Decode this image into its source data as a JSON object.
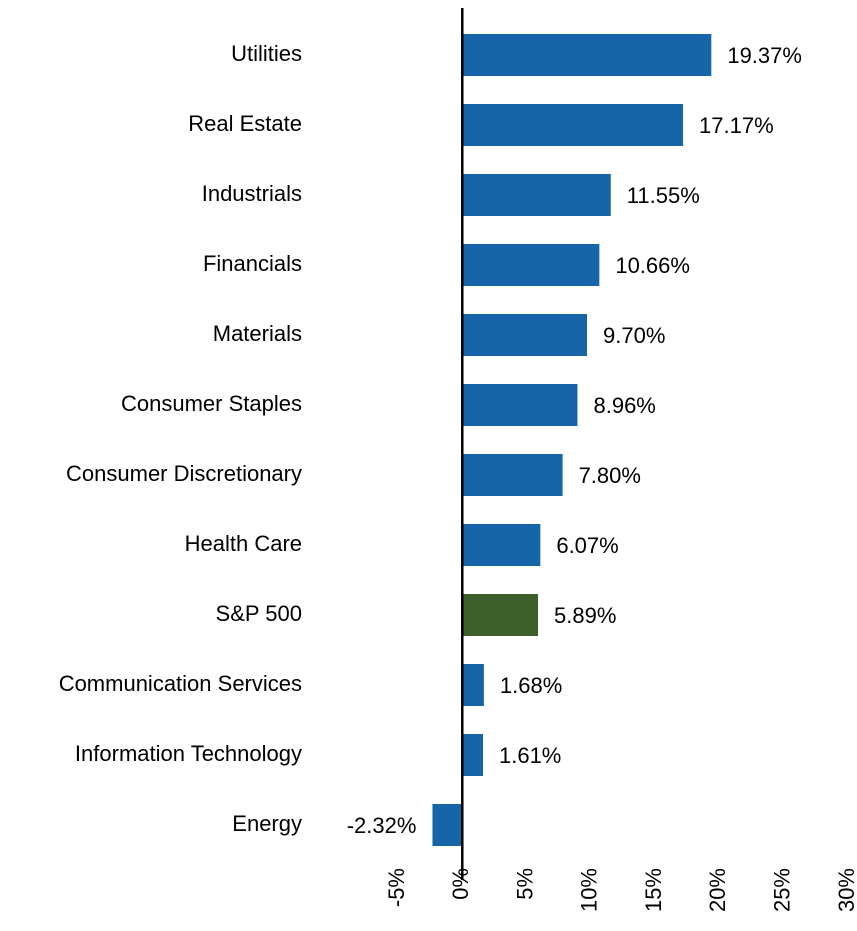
{
  "chart_data": {
    "type": "bar",
    "orientation": "horizontal",
    "categories": [
      "Utilities",
      "Real Estate",
      "Industrials",
      "Financials",
      "Materials",
      "Consumer Staples",
      "Consumer Discretionary",
      "Health Care",
      "S&P 500",
      "Communication Services",
      "Information Technology",
      "Energy"
    ],
    "values": [
      19.37,
      17.17,
      11.55,
      10.66,
      9.7,
      8.96,
      7.8,
      6.07,
      5.89,
      1.68,
      1.61,
      -2.32
    ],
    "value_labels": [
      "19.37%",
      "17.17%",
      "11.55%",
      "10.66%",
      "9.70%",
      "8.96%",
      "7.80%",
      "6.07%",
      "5.89%",
      "1.68%",
      "1.61%",
      "-2.32%"
    ],
    "colors": [
      "#1565a8",
      "#1565a8",
      "#1565a8",
      "#1565a8",
      "#1565a8",
      "#1565a8",
      "#1565a8",
      "#1565a8",
      "#3d5f2c",
      "#1565a8",
      "#1565a8",
      "#1565a8"
    ],
    "xlim": [
      -5,
      30
    ],
    "xticks": [
      {
        "value": -5,
        "label": "-5%"
      },
      {
        "value": 0,
        "label": "0%"
      },
      {
        "value": 5,
        "label": "5%"
      },
      {
        "value": 10,
        "label": "10%"
      },
      {
        "value": 15,
        "label": "15%"
      },
      {
        "value": 20,
        "label": "20%"
      },
      {
        "value": 25,
        "label": "25%"
      },
      {
        "value": 30,
        "label": "30%"
      }
    ],
    "grid": false
  }
}
